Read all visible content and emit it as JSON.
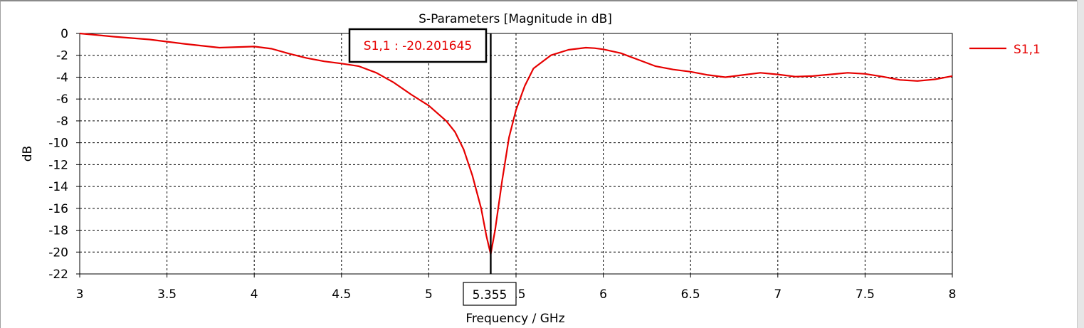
{
  "chart_data": {
    "type": "line",
    "title": "S-Parameters [Magnitude in dB]",
    "xlabel": "Frequency / GHz",
    "ylabel": "dB",
    "xlim": [
      3,
      8
    ],
    "ylim": [
      -22,
      0
    ],
    "xticks": [
      "3",
      "3.5",
      "4",
      "4.5",
      "5",
      "5.5",
      "6",
      "6.5",
      "7",
      "7.5",
      "8"
    ],
    "xtick_values": [
      3,
      3.5,
      4,
      4.5,
      5,
      5.5,
      6,
      6.5,
      7,
      7.5,
      8
    ],
    "yticks": [
      "0",
      "-2",
      "-4",
      "-6",
      "-8",
      "-10",
      "-12",
      "-14",
      "-16",
      "-18",
      "-20",
      "-22"
    ],
    "ytick_values": [
      0,
      -2,
      -4,
      -6,
      -8,
      -10,
      -12,
      -14,
      -16,
      -18,
      -20,
      -22
    ],
    "grid": true,
    "legend_position": "top-right",
    "series": [
      {
        "name": "S1,1",
        "color": "#e60000",
        "x": [
          3.0,
          3.2,
          3.4,
          3.6,
          3.8,
          4.0,
          4.1,
          4.2,
          4.3,
          4.4,
          4.5,
          4.6,
          4.7,
          4.8,
          4.9,
          5.0,
          5.1,
          5.15,
          5.2,
          5.25,
          5.3,
          5.33,
          5.355,
          5.38,
          5.42,
          5.46,
          5.5,
          5.55,
          5.6,
          5.7,
          5.8,
          5.9,
          5.95,
          6.0,
          6.1,
          6.2,
          6.3,
          6.4,
          6.5,
          6.6,
          6.7,
          6.8,
          6.9,
          7.0,
          7.1,
          7.2,
          7.3,
          7.4,
          7.5,
          7.6,
          7.7,
          7.8,
          7.9,
          8.0
        ],
        "y": [
          0.0,
          -0.3,
          -0.55,
          -0.95,
          -1.3,
          -1.2,
          -1.4,
          -1.85,
          -2.25,
          -2.55,
          -2.75,
          -3.0,
          -3.6,
          -4.5,
          -5.6,
          -6.6,
          -8.0,
          -9.0,
          -10.6,
          -13.0,
          -16.0,
          -18.5,
          -20.2,
          -18.0,
          -13.5,
          -9.5,
          -7.0,
          -4.8,
          -3.2,
          -2.0,
          -1.5,
          -1.3,
          -1.35,
          -1.45,
          -1.8,
          -2.4,
          -3.0,
          -3.3,
          -3.5,
          -3.8,
          -4.0,
          -3.8,
          -3.6,
          -3.75,
          -3.95,
          -3.9,
          -3.75,
          -3.6,
          -3.7,
          -3.95,
          -4.25,
          -4.35,
          -4.2,
          -3.9
        ]
      }
    ],
    "marker": {
      "x": 5.355,
      "x_label": "5.355",
      "y": -20.201645,
      "label": "S1,1 : -20.201645"
    }
  }
}
